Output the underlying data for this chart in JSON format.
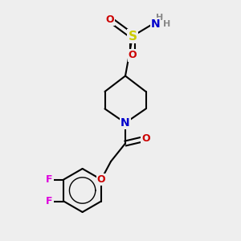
{
  "bg_color": "#eeeeee",
  "atom_colors": {
    "C": "#000000",
    "N": "#0000cc",
    "O": "#cc0000",
    "S": "#cccc00",
    "F": "#dd00dd",
    "H": "#888888"
  },
  "bond_color": "#000000",
  "bond_width": 1.5,
  "fig_size": [
    3.0,
    3.0
  ],
  "dpi": 100
}
